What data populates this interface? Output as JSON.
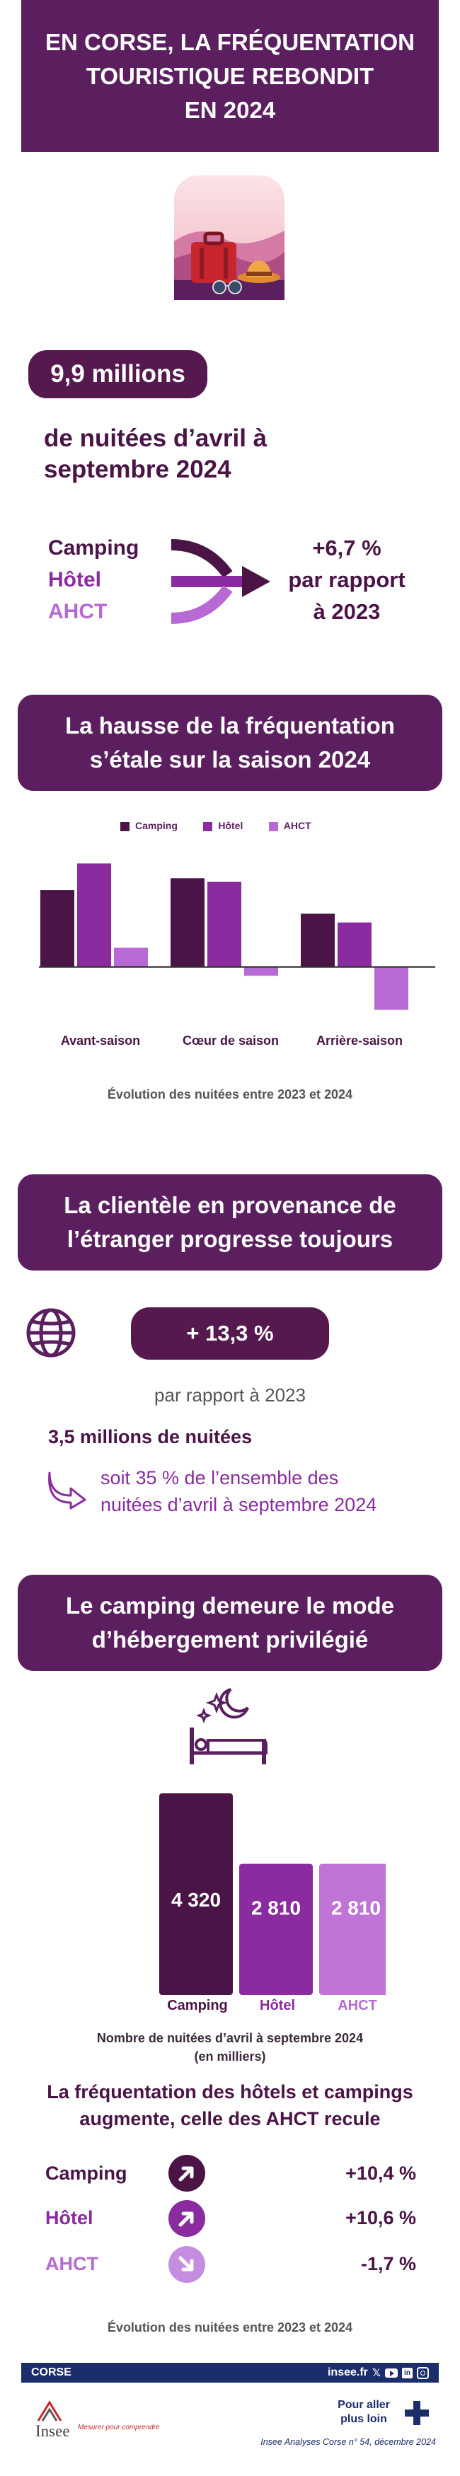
{
  "header": {
    "title_line1": "EN CORSE, LA FRÉQUENTATION",
    "title_line2": "TOURISTIQUE REBONDIT",
    "title_line3": "EN 2024"
  },
  "hero_icon": "suitcase-hat-sunglasses-icon",
  "key_figure": {
    "value": "9,9 millions",
    "label_line1": "de nuitées d’avril à",
    "label_line2": "septembre 2024"
  },
  "evolution_summary": {
    "categories": [
      "Camping",
      "Hôtel",
      "AHCT"
    ],
    "change_line1": "+6,7 %",
    "change_line2": "par rapport",
    "change_line3": "à 2023"
  },
  "section1": {
    "title_line1": "La hausse de la fréquentation",
    "title_line2": "s’étale sur la saison 2024"
  },
  "chart_data": {
    "type": "bar",
    "categories": [
      "Avant-saison",
      "Cœur de saison",
      "Arrière-saison"
    ],
    "series": [
      {
        "name": "Camping",
        "values": [
          10.4,
          12.0,
          7.2
        ]
      },
      {
        "name": "Hôtel",
        "values": [
          14.0,
          11.5,
          6.0
        ]
      },
      {
        "name": "AHCT",
        "values": [
          2.6,
          -1.2,
          -5.8
        ]
      }
    ],
    "ylim": [
      -7,
      15
    ],
    "title": "",
    "caption": "Évolution des nuitées entre 2023 et 2024",
    "legend_position": "top-center",
    "colors": [
      "#4a1446",
      "#8a2ba0",
      "#b76ad3"
    ]
  },
  "section2": {
    "title_line1": "La clientèle en provenance de",
    "title_line2": "l’étranger progresse toujours"
  },
  "foreign": {
    "icon": "globe-icon",
    "change": "+ 13,3 %",
    "change_caption": "par rapport à 2023",
    "nights": "3,5 millions de nuitées",
    "share_line1": "soit 35 % de l’ensemble des",
    "share_line2": "nuitées d’avril à septembre 2024",
    "arrow_icon": "curved-arrow-icon"
  },
  "section3": {
    "title_line1": "Le camping demeure le mode",
    "title_line2": "d’hébergement privilégié"
  },
  "sleep_icon": "bed-moon-stars-icon",
  "nights_chart": {
    "type": "bar",
    "categories": [
      "Camping",
      "Hôtel",
      "AHCT"
    ],
    "values": [
      4320,
      2810,
      2810
    ],
    "value_labels": [
      "4 320",
      "2 810",
      "2 810"
    ],
    "caption_line1": "Nombre de nuitées d’avril à septembre 2024",
    "caption_line2": "(en milliers)"
  },
  "trend": {
    "title_line1": "La fréquentation des hôtels et campings",
    "title_line2": "augmente, celle des AHCT recule",
    "rows": [
      {
        "label": "Camping",
        "value": "+10,4 %",
        "direction": "up",
        "icon": "arrow-up-right-icon"
      },
      {
        "label": "Hôtel",
        "value": "+10,6 %",
        "direction": "up",
        "icon": "arrow-up-right-icon"
      },
      {
        "label": "AHCT",
        "value": "-1,7 %",
        "direction": "down",
        "icon": "arrow-down-right-icon"
      }
    ],
    "caption": "Évolution des nuitées entre 2023 et 2024"
  },
  "footer": {
    "region": "CORSE",
    "site": "insee.fr",
    "social_icons": [
      "x-icon",
      "youtube-icon",
      "linkedin-icon",
      "instagram-icon"
    ],
    "logo_text": "Insee",
    "tagline": "Mesurer pour comprendre",
    "more_line1": "Pour aller",
    "more_line2": "plus loin",
    "publication": "Insee Analyses Corse n° 54, décembre 2024"
  }
}
